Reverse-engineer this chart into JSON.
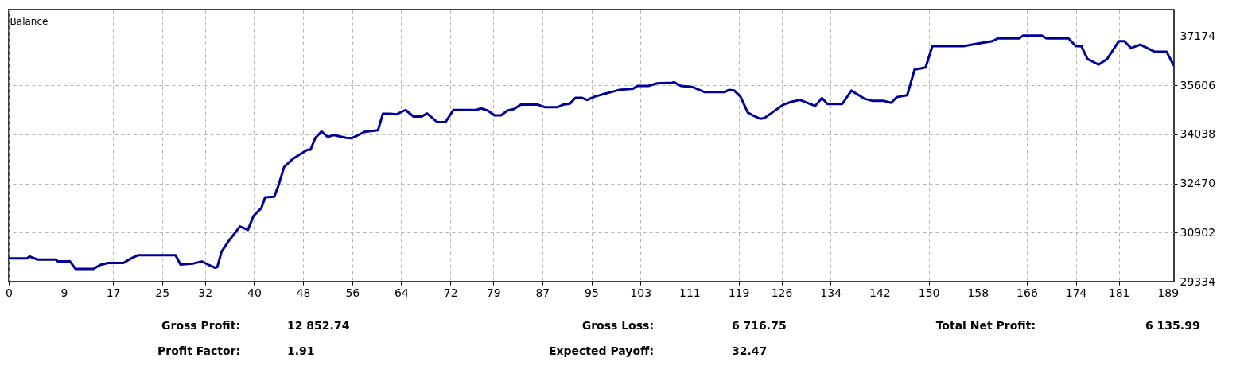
{
  "chart_data": {
    "type": "line",
    "title": "Balance",
    "x": [
      0,
      3,
      3.4,
      4.7,
      7.7,
      8,
      10,
      10.9,
      13.8,
      14.9,
      16.2,
      18.7,
      20,
      21.1,
      27.2,
      28,
      30,
      31.5,
      32.5,
      33.6,
      34,
      34.7,
      36,
      37.7,
      39,
      39.9,
      41.2,
      41.8,
      43.3,
      44,
      44.9,
      46.4,
      48.7,
      49.2,
      50,
      51,
      52,
      53,
      55,
      55.9,
      56.5,
      58,
      60.2,
      61,
      62.2,
      63.2,
      64.7,
      66,
      67.3,
      68.2,
      69.9,
      71.2,
      72.5,
      76.2,
      77,
      78.1,
      79.2,
      80.3,
      81.3,
      82.4,
      83.5,
      86.3,
      87.4,
      89.5,
      90.4,
      91.5,
      92.4,
      93.4,
      94.3,
      95.6,
      97.8,
      99.5,
      101.8,
      102.5,
      104.3,
      105.7,
      108.2,
      108.5,
      109.6,
      111.4,
      113.5,
      116.7,
      117.4,
      118.3,
      119.3,
      120.5,
      121.3,
      122.5,
      123.2,
      124.5,
      126.3,
      127.6,
      129,
      130.3,
      131.5,
      132.6,
      133.5,
      135.9,
      137.4,
      139.5,
      140.9,
      142.7,
      143.9,
      144.8,
      146.5,
      147.7,
      149.5,
      150.6,
      155.7,
      157.6,
      160.4,
      161.3,
      164.8,
      165.4,
      168.4,
      169.2,
      172.8,
      174,
      174.9,
      175.9,
      177.7,
      179.1,
      181,
      181.9,
      183,
      184.5,
      186.9,
      188.8,
      190
    ],
    "series": [
      {
        "color": "#000096",
        "values": [
          30080,
          30080,
          30140,
          30040,
          30040,
          29980,
          29980,
          29740,
          29740,
          29870,
          29930,
          29930,
          30080,
          30180,
          30180,
          29880,
          29910,
          29980,
          29880,
          29780,
          29800,
          30290,
          30670,
          31100,
          30990,
          31430,
          31690,
          32030,
          32050,
          32420,
          33000,
          33270,
          33550,
          33550,
          33930,
          34130,
          33960,
          34020,
          33930,
          33920,
          33970,
          34120,
          34170,
          34700,
          34700,
          34680,
          34820,
          34610,
          34610,
          34710,
          34430,
          34430,
          34820,
          34820,
          34870,
          34800,
          34650,
          34650,
          34800,
          34850,
          34990,
          34990,
          34910,
          34910,
          34990,
          35020,
          35210,
          35210,
          35140,
          35250,
          35370,
          35460,
          35500,
          35590,
          35590,
          35670,
          35690,
          35710,
          35590,
          35560,
          35390,
          35390,
          35460,
          35440,
          35250,
          34740,
          34650,
          34540,
          34560,
          34740,
          34990,
          35080,
          35140,
          35040,
          34950,
          35200,
          35010,
          35010,
          35440,
          35180,
          35110,
          35110,
          35050,
          35230,
          35290,
          36110,
          36180,
          36860,
          36860,
          36930,
          37020,
          37110,
          37110,
          37200,
          37200,
          37110,
          37110,
          36860,
          36860,
          36450,
          36270,
          36450,
          37020,
          37020,
          36800,
          36910,
          36680,
          36680,
          36230
        ]
      }
    ],
    "xlim": [
      0,
      190
    ],
    "xticks": [
      0,
      9,
      17,
      25,
      32,
      40,
      48,
      56,
      64,
      72,
      79,
      87,
      95,
      103,
      111,
      119,
      126,
      134,
      142,
      150,
      158,
      166,
      174,
      181,
      189
    ],
    "ylim": [
      29334,
      38030
    ],
    "yticks": [
      29334,
      30902,
      32470,
      34038,
      35606,
      37174
    ],
    "grid": true,
    "annotations": [
      "Gross Profit:",
      "12 852.74",
      "Gross Loss:",
      "6 716.75",
      "Total Net Profit:",
      "6 135.99",
      "Profit Factor:",
      "1.91",
      "Expected Payoff:",
      "32.47"
    ]
  }
}
